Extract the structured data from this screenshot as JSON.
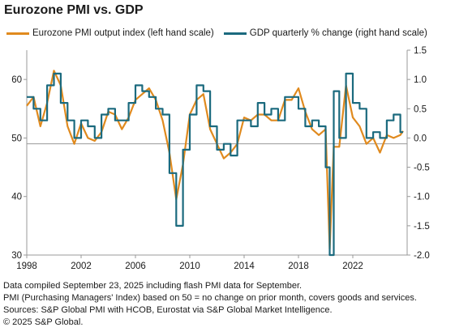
{
  "title": "Eurozone PMI vs. GDP",
  "colors": {
    "pmi": "#E08A1E",
    "gdp": "#1B6A7E",
    "axis": "#999999",
    "ref": "#999999"
  },
  "chart_data": {
    "type": "line",
    "title": "Eurozone PMI vs. GDP",
    "x_range": [
      1998.0,
      2026.0
    ],
    "x_ticks": [
      "1998",
      "2002",
      "2006",
      "2010",
      "2014",
      "2018",
      "2022"
    ],
    "y_left": {
      "range": [
        30,
        65
      ],
      "ticks": [
        "30",
        "40",
        "50",
        "60"
      ]
    },
    "y_right": {
      "range": [
        -2.0,
        1.5
      ],
      "ticks": [
        "1.5",
        "1.0",
        "0.5",
        "0.0",
        "-0.5",
        "-1.0",
        "-1.5",
        "-2.0"
      ]
    },
    "reference_line": {
      "axis": "left",
      "value": 49
    },
    "series": [
      {
        "name": "Eurozone PMI output index (left hand scale)",
        "axis": "left",
        "x": [
          1998.0,
          1998.5,
          1999.0,
          1999.5,
          2000.0,
          2000.5,
          2001.0,
          2001.5,
          2002.0,
          2002.5,
          2003.0,
          2003.5,
          2004.0,
          2004.5,
          2005.0,
          2005.5,
          2006.0,
          2006.5,
          2007.0,
          2007.5,
          2008.0,
          2008.5,
          2009.0,
          2009.5,
          2010.0,
          2010.5,
          2011.0,
          2011.5,
          2012.0,
          2012.5,
          2013.0,
          2013.5,
          2014.0,
          2014.5,
          2015.0,
          2015.5,
          2016.0,
          2016.5,
          2017.0,
          2017.5,
          2018.0,
          2018.5,
          2019.0,
          2019.5,
          2020.0,
          2020.3,
          2020.6,
          2021.0,
          2021.5,
          2022.0,
          2022.5,
          2023.0,
          2023.5,
          2024.0,
          2024.5,
          2025.0,
          2025.5,
          2025.7
        ],
        "values": [
          55.5,
          57.0,
          52.0,
          56.0,
          61.5,
          59.0,
          52.0,
          49.0,
          52.5,
          50.0,
          49.5,
          51.0,
          54.5,
          54.0,
          51.5,
          53.5,
          56.5,
          57.5,
          58.5,
          56.5,
          53.0,
          47.5,
          39.5,
          45.5,
          54.0,
          56.5,
          57.5,
          51.5,
          49.0,
          46.5,
          47.5,
          49.0,
          53.5,
          53.0,
          54.0,
          54.0,
          53.0,
          53.0,
          56.5,
          56.5,
          58.5,
          54.5,
          51.5,
          50.5,
          51.5,
          31.0,
          48.5,
          48.5,
          59.0,
          53.5,
          52.0,
          49.0,
          50.0,
          47.5,
          50.5,
          50.0,
          50.5,
          51.2
        ]
      },
      {
        "name": "GDP quarterly % change (right hand scale)",
        "axis": "right",
        "x": [
          1998.0,
          1998.5,
          1999.0,
          1999.5,
          2000.0,
          2000.5,
          2001.0,
          2001.5,
          2002.0,
          2002.5,
          2003.0,
          2003.5,
          2004.0,
          2004.5,
          2005.0,
          2005.5,
          2006.0,
          2006.5,
          2007.0,
          2007.5,
          2008.0,
          2008.5,
          2009.0,
          2009.5,
          2010.0,
          2010.5,
          2011.0,
          2011.5,
          2012.0,
          2012.5,
          2013.0,
          2013.5,
          2014.0,
          2014.5,
          2015.0,
          2015.5,
          2016.0,
          2016.5,
          2017.0,
          2017.5,
          2018.0,
          2018.5,
          2019.0,
          2019.5,
          2020.0,
          2020.3,
          2020.6,
          2021.0,
          2021.5,
          2022.0,
          2022.5,
          2023.0,
          2023.5,
          2024.0,
          2024.5,
          2025.0,
          2025.5,
          2025.7
        ],
        "values": [
          0.7,
          0.5,
          0.3,
          0.9,
          1.1,
          0.6,
          0.3,
          0.0,
          0.3,
          0.2,
          0.0,
          0.4,
          0.5,
          0.3,
          0.3,
          0.6,
          0.9,
          0.8,
          0.7,
          0.5,
          0.4,
          -0.6,
          -1.5,
          -0.2,
          0.4,
          0.9,
          0.8,
          0.2,
          -0.2,
          -0.1,
          -0.3,
          0.3,
          0.3,
          0.2,
          0.6,
          0.4,
          0.5,
          0.3,
          0.7,
          0.7,
          0.5,
          0.2,
          0.3,
          0.2,
          -0.5,
          -2.0,
          0.8,
          0.0,
          1.1,
          0.6,
          0.5,
          0.0,
          0.1,
          0.0,
          0.3,
          0.4,
          0.1,
          0.1
        ]
      }
    ]
  },
  "notes": [
    "Data compiled September 23, 2025 including flash PMI data for September.",
    "PMI (Purchasing Managers' Index) based on 50 = no change on prior month, covers goods and services.",
    "Sources: S&P Global PMI with HCOB, Eurostat via S&P Global Market Intelligence.",
    "© 2025 S&P Global."
  ]
}
